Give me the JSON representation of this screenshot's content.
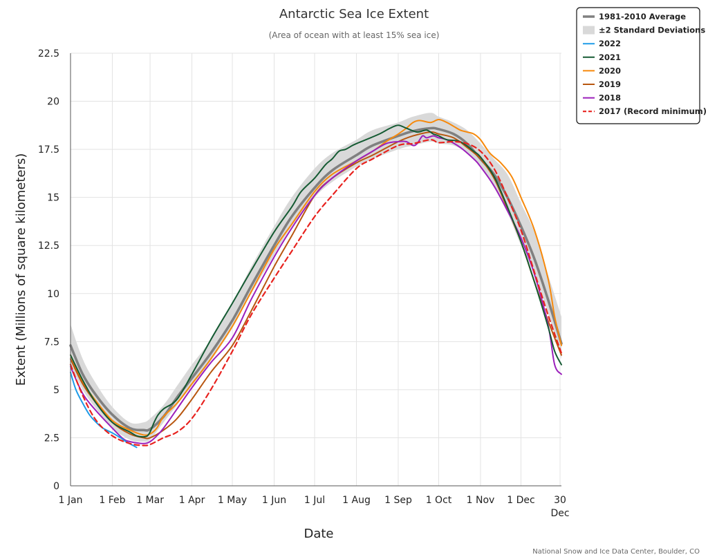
{
  "credit": "National Snow and Ice Data Center, Boulder, CO",
  "chart_data": {
    "type": "line",
    "title": "Antarctic Sea Ice Extent",
    "subtitle": "(Area of ocean with at least 15% sea ice)",
    "xlabel": "Date",
    "ylabel": "Extent (Millions of square kilometers)",
    "xlim": [
      1,
      365
    ],
    "ylim": [
      0,
      22.5
    ],
    "yticks": [
      "0",
      "2.5",
      "5",
      "7.5",
      "10",
      "12.5",
      "15",
      "17.5",
      "20",
      "22.5"
    ],
    "xticks": [
      {
        "day": 1,
        "label": "1 Jan"
      },
      {
        "day": 32,
        "label": "1 Feb"
      },
      {
        "day": 60,
        "label": "1 Mar"
      },
      {
        "day": 91,
        "label": "1 Apr"
      },
      {
        "day": 121,
        "label": "1 May"
      },
      {
        "day": 152,
        "label": "1 Jun"
      },
      {
        "day": 182,
        "label": "1 Jul"
      },
      {
        "day": 213,
        "label": "1 Aug"
      },
      {
        "day": 244,
        "label": "1 Sep"
      },
      {
        "day": 274,
        "label": "1 Oct"
      },
      {
        "day": 305,
        "label": "1 Nov"
      },
      {
        "day": 335,
        "label": "1 Dec"
      },
      {
        "day": 364,
        "label": "30 Dec"
      }
    ],
    "grid": true,
    "legend_position": "top-right",
    "std_band": {
      "name": "±2 Standard Deviations",
      "color": "#d9d9d9",
      "x": [
        1,
        10,
        20,
        32,
        45,
        55,
        60,
        70,
        80,
        91,
        105,
        121,
        135,
        152,
        165,
        182,
        195,
        213,
        225,
        244,
        255,
        268,
        274,
        285,
        295,
        305,
        315,
        325,
        335,
        345,
        355,
        365
      ],
      "upper": [
        8.4,
        6.6,
        5.3,
        4.1,
        3.3,
        3.3,
        3.5,
        4.2,
        5.2,
        6.3,
        7.6,
        9.5,
        11.4,
        13.5,
        15.0,
        16.5,
        17.3,
        18.0,
        18.5,
        18.9,
        19.2,
        19.4,
        19.2,
        18.9,
        18.5,
        17.8,
        17.0,
        16.2,
        14.7,
        13.2,
        11.0,
        8.8
      ],
      "lower": [
        6.3,
        5.0,
        4.0,
        3.0,
        2.4,
        2.3,
        2.4,
        3.3,
        4.2,
        5.2,
        6.5,
        8.2,
        10.0,
        12.0,
        13.5,
        15.0,
        15.8,
        16.6,
        17.0,
        17.5,
        17.7,
        17.9,
        17.8,
        17.7,
        17.3,
        16.6,
        15.5,
        14.2,
        12.5,
        11.0,
        9.0,
        6.6
      ]
    },
    "series": [
      {
        "name": "1981-2010 Average",
        "color": "#808080",
        "width": 3.6,
        "dash": "",
        "x": [
          1,
          10,
          20,
          32,
          45,
          55,
          60,
          70,
          80,
          91,
          105,
          121,
          135,
          152,
          165,
          182,
          195,
          213,
          225,
          244,
          255,
          268,
          274,
          285,
          295,
          305,
          315,
          325,
          335,
          345,
          355,
          365
        ],
        "y": [
          7.3,
          5.8,
          4.7,
          3.7,
          3.0,
          2.9,
          2.95,
          3.6,
          4.6,
          5.6,
          6.9,
          8.6,
          10.4,
          12.5,
          14.0,
          15.5,
          16.4,
          17.2,
          17.7,
          18.2,
          18.45,
          18.6,
          18.55,
          18.3,
          17.8,
          17.0,
          16.2,
          15.0,
          13.5,
          11.8,
          9.7,
          7.4
        ]
      },
      {
        "name": "2022",
        "color": "#1e9be8",
        "width": 2,
        "dash": "",
        "x": [
          1,
          5,
          10,
          15,
          20,
          25,
          32,
          38,
          42,
          46,
          50
        ],
        "y": [
          5.9,
          5.0,
          4.3,
          3.7,
          3.3,
          3.0,
          2.75,
          2.5,
          2.3,
          2.15,
          2.0
        ]
      },
      {
        "name": "2021",
        "color": "#145a32",
        "width": 2,
        "dash": "",
        "x": [
          1,
          10,
          20,
          32,
          45,
          50,
          55,
          58,
          60,
          63,
          66,
          70,
          80,
          91,
          105,
          121,
          135,
          152,
          165,
          172,
          182,
          190,
          195,
          200,
          205,
          210,
          213,
          220,
          230,
          238,
          244,
          250,
          258,
          265,
          270,
          274,
          280,
          290,
          300,
          305,
          315,
          325,
          335,
          345,
          355,
          360,
          365
        ],
        "y": [
          6.8,
          5.5,
          4.3,
          3.3,
          2.8,
          2.6,
          2.55,
          2.6,
          2.8,
          3.3,
          3.7,
          4.0,
          4.5,
          5.8,
          7.6,
          9.5,
          11.2,
          13.2,
          14.5,
          15.3,
          16.0,
          16.7,
          17.0,
          17.4,
          17.5,
          17.7,
          17.8,
          18.0,
          18.3,
          18.6,
          18.75,
          18.6,
          18.4,
          18.5,
          18.3,
          18.2,
          18.0,
          17.9,
          17.4,
          17.1,
          16.1,
          14.5,
          12.7,
          10.6,
          8.3,
          7.0,
          6.3
        ]
      },
      {
        "name": "2020",
        "color": "#f7890b",
        "width": 2,
        "dash": "",
        "x": [
          1,
          10,
          20,
          32,
          45,
          55,
          60,
          65,
          70,
          80,
          91,
          105,
          121,
          135,
          152,
          165,
          182,
          195,
          213,
          225,
          235,
          244,
          250,
          255,
          260,
          268,
          274,
          280,
          285,
          290,
          295,
          300,
          305,
          312,
          320,
          328,
          335,
          345,
          355,
          360,
          365
        ],
        "y": [
          6.8,
          5.4,
          4.4,
          3.4,
          2.9,
          2.65,
          2.7,
          3.0,
          3.6,
          4.3,
          5.3,
          6.6,
          8.3,
          10.1,
          12.3,
          13.6,
          15.3,
          16.2,
          16.9,
          17.4,
          17.9,
          18.3,
          18.6,
          18.9,
          19.0,
          18.9,
          19.05,
          18.9,
          18.7,
          18.5,
          18.4,
          18.3,
          18.0,
          17.3,
          16.8,
          16.1,
          15.0,
          13.3,
          10.8,
          8.8,
          7.3
        ]
      },
      {
        "name": "2019",
        "color": "#b8560f",
        "width": 2,
        "dash": "",
        "x": [
          1,
          10,
          20,
          32,
          45,
          55,
          60,
          70,
          80,
          91,
          105,
          121,
          135,
          152,
          165,
          182,
          195,
          213,
          225,
          244,
          255,
          268,
          274,
          285,
          295,
          305,
          315,
          325,
          335,
          345,
          355,
          365
        ],
        "y": [
          6.6,
          5.3,
          4.3,
          3.3,
          2.7,
          2.5,
          2.5,
          2.9,
          3.5,
          4.5,
          5.9,
          7.3,
          9.1,
          11.4,
          13.0,
          15.1,
          16.0,
          16.8,
          17.2,
          17.9,
          18.2,
          18.4,
          18.3,
          18.1,
          17.6,
          17.0,
          16.0,
          14.4,
          12.7,
          10.6,
          8.6,
          6.8
        ]
      },
      {
        "name": "2018",
        "color": "#9b1fbb",
        "width": 2,
        "dash": "",
        "x": [
          1,
          10,
          20,
          32,
          40,
          45,
          55,
          60,
          65,
          70,
          80,
          91,
          105,
          121,
          135,
          152,
          165,
          182,
          195,
          213,
          225,
          235,
          244,
          250,
          255,
          258,
          262,
          265,
          270,
          274,
          280,
          290,
          300,
          305,
          315,
          325,
          335,
          345,
          355,
          360,
          365
        ],
        "y": [
          6.2,
          4.8,
          3.9,
          3.0,
          2.45,
          2.3,
          2.2,
          2.3,
          2.6,
          3.0,
          4.0,
          5.1,
          6.4,
          7.7,
          9.7,
          11.9,
          13.4,
          15.1,
          16.0,
          16.9,
          17.4,
          17.8,
          17.9,
          17.9,
          17.7,
          17.8,
          18.2,
          18.1,
          18.2,
          18.1,
          18.0,
          17.6,
          17.0,
          16.6,
          15.6,
          14.3,
          12.9,
          11.0,
          8.4,
          6.3,
          5.8
        ]
      },
      {
        "name": "2017 (Record minimum)",
        "color": "#e8221e",
        "width": 2.2,
        "dash": "7,5",
        "x": [
          1,
          10,
          20,
          32,
          45,
          55,
          60,
          70,
          80,
          91,
          105,
          121,
          135,
          152,
          165,
          182,
          195,
          213,
          225,
          244,
          255,
          268,
          274,
          285,
          295,
          305,
          315,
          325,
          335,
          345,
          355,
          365
        ],
        "y": [
          6.3,
          4.7,
          3.4,
          2.6,
          2.2,
          2.1,
          2.15,
          2.5,
          2.8,
          3.5,
          5.0,
          7.0,
          8.9,
          10.8,
          12.2,
          14.0,
          15.1,
          16.5,
          17.0,
          17.7,
          17.8,
          18.0,
          17.85,
          17.9,
          17.8,
          17.4,
          16.5,
          15.0,
          13.3,
          11.1,
          8.9,
          6.9
        ]
      }
    ]
  }
}
